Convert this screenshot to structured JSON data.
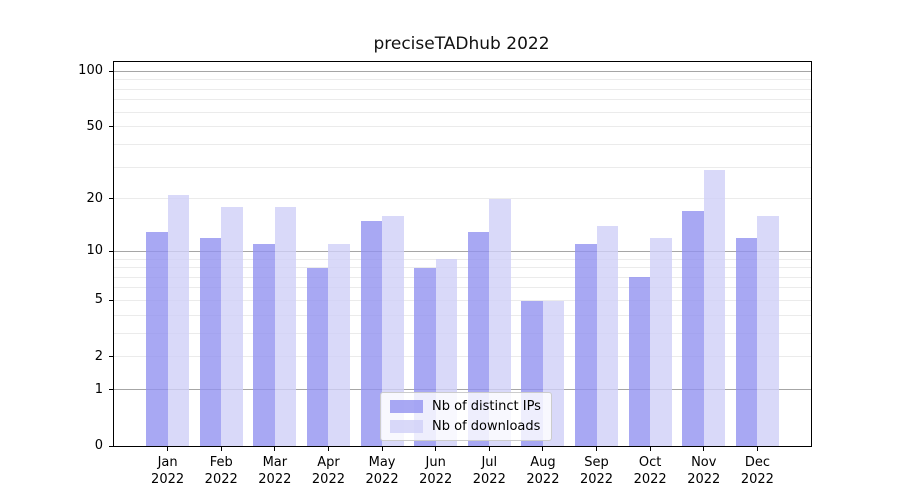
{
  "figure": {
    "title": "preciseTADhub 2022"
  },
  "chart_data": {
    "type": "bar",
    "title": "preciseTADhub 2022",
    "categories": [
      "Jan 2022",
      "Feb 2022",
      "Mar 2022",
      "Apr 2022",
      "May 2022",
      "Jun 2022",
      "Jul 2022",
      "Aug 2022",
      "Sep 2022",
      "Oct 2022",
      "Nov 2022",
      "Dec 2022"
    ],
    "x_tick_labels": [
      {
        "month": "Jan",
        "year": "2022"
      },
      {
        "month": "Feb",
        "year": "2022"
      },
      {
        "month": "Mar",
        "year": "2022"
      },
      {
        "month": "Apr",
        "year": "2022"
      },
      {
        "month": "May",
        "year": "2022"
      },
      {
        "month": "Jun",
        "year": "2022"
      },
      {
        "month": "Jul",
        "year": "2022"
      },
      {
        "month": "Aug",
        "year": "2022"
      },
      {
        "month": "Sep",
        "year": "2022"
      },
      {
        "month": "Oct",
        "year": "2022"
      },
      {
        "month": "Nov",
        "year": "2022"
      },
      {
        "month": "Dec",
        "year": "2022"
      }
    ],
    "series": [
      {
        "name": "Nb of distinct IPs",
        "color": "#a8a8f3",
        "values": [
          13,
          12,
          11,
          8,
          15,
          8,
          13,
          5,
          11,
          7,
          17,
          12
        ]
      },
      {
        "name": "Nb of downloads",
        "color": "#d9d9f9",
        "values": [
          21,
          18,
          18,
          11,
          16,
          9,
          20,
          5,
          14,
          12,
          29,
          16
        ]
      }
    ],
    "y_scale": "log10(1+value)",
    "y_ticks": [
      0,
      1,
      2,
      5,
      10,
      20,
      50,
      100
    ],
    "ylim": [
      0,
      112
    ],
    "xlabel": "",
    "ylabel": "",
    "grid": "horizontal",
    "gridlines": {
      "major": [
        1,
        10,
        100
      ],
      "minor": [
        2,
        3,
        4,
        5,
        6,
        7,
        8,
        9,
        20,
        30,
        40,
        50,
        60,
        70,
        80,
        90
      ]
    },
    "legend": {
      "position": "lower center"
    }
  }
}
